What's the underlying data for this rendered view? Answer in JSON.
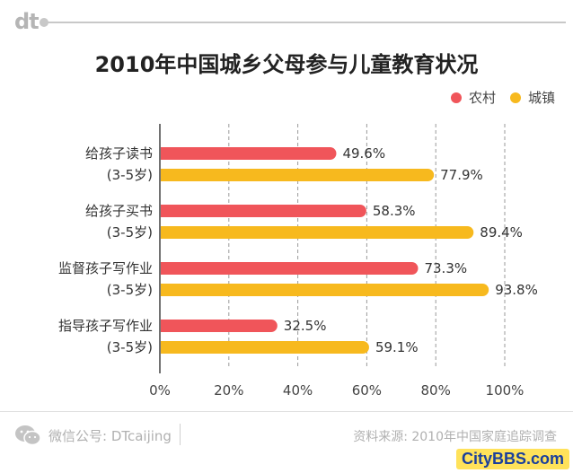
{
  "brand": {
    "logo_text": "dt"
  },
  "chart_data": {
    "type": "bar",
    "orientation": "horizontal",
    "title": "2010年中国城乡父母参与儿童教育状况",
    "categories": [
      {
        "line1": "给孩子读书",
        "line2": "(3-5岁)"
      },
      {
        "line1": "给孩子买书",
        "line2": "(3-5岁)"
      },
      {
        "line1": "监督孩子写作业",
        "line2": "(3-5岁)"
      },
      {
        "line1": "指导孩子写作业",
        "line2": "(3-5岁)"
      }
    ],
    "series": [
      {
        "name": "农村",
        "color": "#f0555a",
        "values": [
          49.6,
          58.3,
          73.3,
          32.5
        ]
      },
      {
        "name": "城镇",
        "color": "#f7b91e",
        "values": [
          77.9,
          89.4,
          93.8,
          59.1
        ]
      }
    ],
    "value_labels": [
      [
        "49.6%",
        "58.3%",
        "73.3%",
        "32.5%"
      ],
      [
        "77.9%",
        "89.4%",
        "93.8%",
        "59.1%"
      ]
    ],
    "xlim": [
      0,
      100
    ],
    "xticks": [
      0,
      20,
      40,
      60,
      80,
      100
    ],
    "xtick_labels": [
      "0%",
      "20%",
      "40%",
      "60%",
      "80%",
      "100%"
    ],
    "grid": "vertical dashed",
    "legend_position": "top-right"
  },
  "footer": {
    "wechat_label": "微信公号: DTcaijing",
    "source": "资料来源: 2010年中国家庭追踪调查"
  },
  "watermark": "CityBBS.com"
}
